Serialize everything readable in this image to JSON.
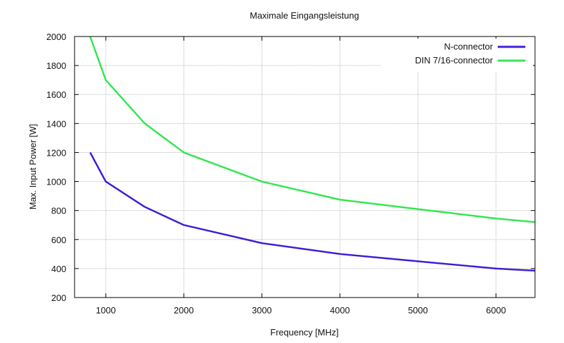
{
  "chart_data": {
    "type": "line",
    "title": "Maximale Eingangsleistung",
    "xlabel": "Frequency [MHz]",
    "ylabel": "Max. Input Power [W]",
    "xlim": [
      600,
      6500
    ],
    "ylim": [
      200,
      2000
    ],
    "xticks": [
      1000,
      2000,
      3000,
      4000,
      5000,
      6000
    ],
    "yticks": [
      200,
      400,
      600,
      800,
      1000,
      1200,
      1400,
      1600,
      1800,
      2000
    ],
    "grid": true,
    "legend_position": "top-right",
    "series": [
      {
        "name": "N-connector",
        "color": "#3a1fd6",
        "x": [
          800,
          1000,
          1500,
          2000,
          3000,
          4000,
          5000,
          6000,
          6500
        ],
        "y": [
          1200,
          1000,
          825,
          700,
          575,
          500,
          450,
          400,
          385
        ]
      },
      {
        "name": "DIN 7/16-connector",
        "color": "#33e650",
        "x": [
          800,
          1000,
          1500,
          2000,
          3000,
          4000,
          5000,
          6000,
          6500
        ],
        "y": [
          2000,
          1700,
          1400,
          1200,
          1000,
          875,
          810,
          745,
          720
        ]
      }
    ]
  }
}
